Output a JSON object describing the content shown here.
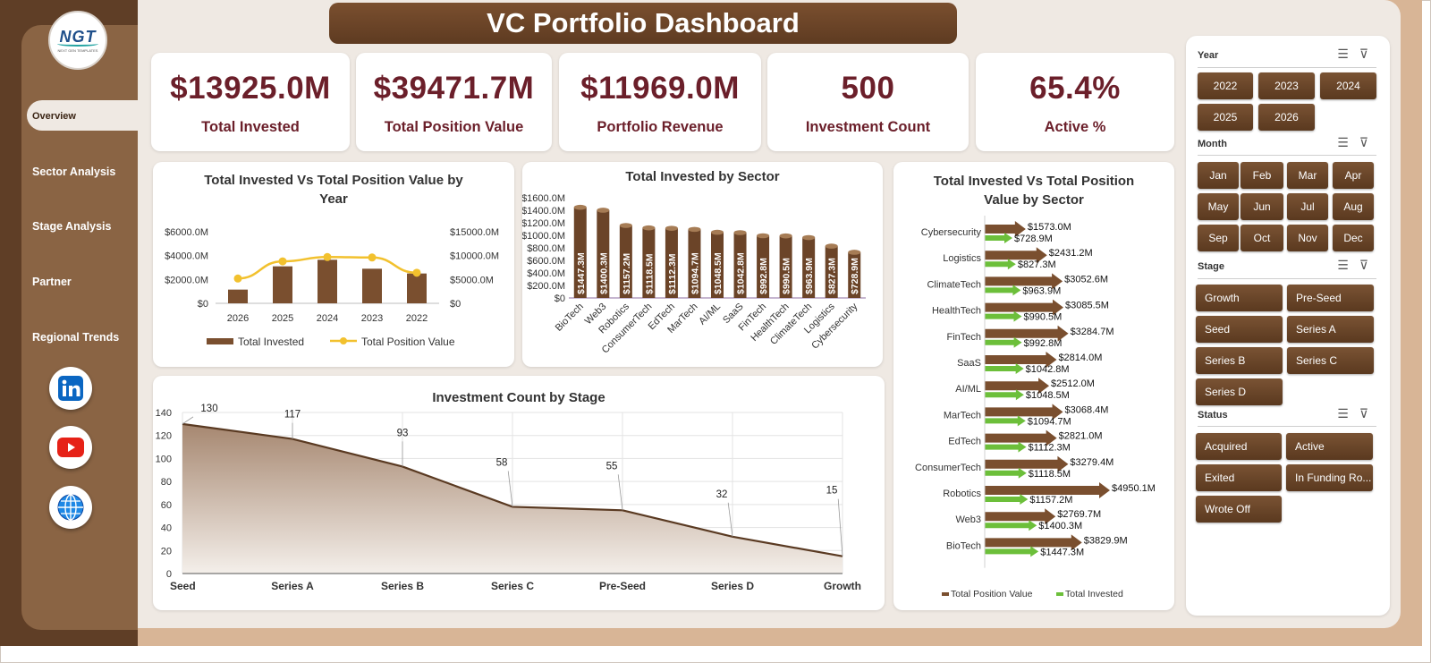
{
  "app": {
    "title": "VC Portfolio Dashboard",
    "logo_text": "NGT",
    "logo_tagline": "NEXT GEN TEMPLATES"
  },
  "nav": {
    "items": [
      {
        "label": "Overview"
      },
      {
        "label": "Sector Analysis"
      },
      {
        "label": "Stage Analysis"
      },
      {
        "label": "Partner"
      },
      {
        "label": "Regional Trends"
      }
    ],
    "social": [
      "linkedin-icon",
      "youtube-icon",
      "globe-icon"
    ]
  },
  "kpis": [
    {
      "value": "$13925.0M",
      "label": "Total Invested"
    },
    {
      "value": "$39471.7M",
      "label": "Total Position Value"
    },
    {
      "value": "$11969.0M",
      "label": "Portfolio Revenue"
    },
    {
      "value": "500",
      "label": "Investment Count"
    },
    {
      "value": "65.4%",
      "label": "Active %"
    }
  ],
  "charts": {
    "year": {
      "title": "Total Invested Vs Total Position Value by Year"
    },
    "sector": {
      "title": "Total Invested by Sector"
    },
    "sector_pos": {
      "title": "Total Invested Vs Total Position Value by Sector"
    },
    "stage": {
      "title": "Investment Count by Stage"
    }
  },
  "slicers": {
    "year": {
      "title": "Year",
      "options": [
        "2022",
        "2023",
        "2024",
        "2025",
        "2026"
      ]
    },
    "month": {
      "title": "Month",
      "options": [
        "Jan",
        "Feb",
        "Mar",
        "Apr",
        "May",
        "Jun",
        "Jul",
        "Aug",
        "Sep",
        "Oct",
        "Nov",
        "Dec"
      ]
    },
    "stage": {
      "title": "Stage",
      "options": [
        "Growth",
        "Pre-Seed",
        "Seed",
        "Series A",
        "Series B",
        "Series C",
        "Series D"
      ]
    },
    "status": {
      "title": "Status",
      "options": [
        "Acquired",
        "Active",
        "Exited",
        "In Funding Ro...",
        "Wrote Off"
      ]
    }
  },
  "colors": {
    "brown_dark": "#5f3e26",
    "brown_bar": "#7a4f2f",
    "yellow_line": "#f2c12e",
    "green_bar": "#6cbf3a",
    "kpi_text": "#6b1f2a"
  },
  "chart_data": [
    {
      "type": "bar",
      "title": "Total Invested Vs Total Position Value by Year",
      "categories": [
        "2026",
        "2025",
        "2024",
        "2023",
        "2022"
      ],
      "series": [
        {
          "name": "Total Invested",
          "type": "bar",
          "axis": "left",
          "values": [
            1150,
            3100,
            3650,
            2900,
            2500
          ]
        },
        {
          "name": "Total Position Value",
          "type": "line",
          "axis": "right",
          "values": [
            5200,
            8800,
            9700,
            9600,
            6400
          ]
        }
      ],
      "y_left": {
        "ticks": [
          "$0",
          "$2000.0M",
          "$4000.0M",
          "$6000.0M"
        ],
        "ylim": [
          0,
          6000
        ]
      },
      "y_right": {
        "ticks": [
          "$0",
          "$5000.0M",
          "$10000.0M",
          "$15000.0M"
        ],
        "ylim": [
          0,
          15000
        ]
      },
      "legend": "bottom"
    },
    {
      "type": "bar",
      "title": "Total Invested by Sector",
      "categories": [
        "BioTech",
        "Web3",
        "Robotics",
        "ConsumerTech",
        "EdTech",
        "MarTech",
        "AI/ML",
        "SaaS",
        "FinTech",
        "HealthTech",
        "ClimateTech",
        "Logistics",
        "Cybersecurity"
      ],
      "values": [
        1447.3,
        1400.3,
        1157.2,
        1118.5,
        1112.3,
        1094.7,
        1048.5,
        1042.8,
        992.8,
        990.5,
        963.9,
        827.3,
        728.9
      ],
      "labels": [
        "$1447.3M",
        "$1400.3M",
        "$1157.2M",
        "$1118.5M",
        "$1112.3M",
        "$1094.7M",
        "$1048.5M",
        "$1042.8M",
        "$992.8M",
        "$990.5M",
        "$963.9M",
        "$827.3M",
        "$728.9M"
      ],
      "y_ticks": [
        "$0",
        "$200.0M",
        "$400.0M",
        "$600.0M",
        "$800.0M",
        "$1000.0M",
        "$1200.0M",
        "$1400.0M",
        "$1600.0M"
      ],
      "ylim": [
        0,
        1600
      ]
    },
    {
      "type": "bar",
      "orientation": "horizontal",
      "title": "Total Invested Vs Total Position Value by Sector",
      "categories": [
        "Cybersecurity",
        "Logistics",
        "ClimateTech",
        "HealthTech",
        "FinTech",
        "SaaS",
        "AI/ML",
        "MarTech",
        "EdTech",
        "ConsumerTech",
        "Robotics",
        "Web3",
        "BioTech"
      ],
      "series": [
        {
          "name": "Total Position Value",
          "values": [
            1573.0,
            2431.2,
            3052.6,
            3085.5,
            3284.7,
            2814.0,
            2512.0,
            3068.4,
            2821.0,
            3279.4,
            4950.1,
            2769.7,
            3829.9
          ],
          "labels": [
            "$1573.0M",
            "$2431.2M",
            "$3052.6M",
            "$3085.5M",
            "$3284.7M",
            "$2814.0M",
            "$2512.0M",
            "$3068.4M",
            "$2821.0M",
            "$3279.4M",
            "$4950.1M",
            "$2769.7M",
            "$3829.9M"
          ]
        },
        {
          "name": "Total Invested",
          "values": [
            728.9,
            827.3,
            963.9,
            990.5,
            992.8,
            1042.8,
            1048.5,
            1094.7,
            1112.3,
            1118.5,
            1157.2,
            1400.3,
            1447.3
          ],
          "labels": [
            "$728.9M",
            "$827.3M",
            "$963.9M",
            "$990.5M",
            "$992.8M",
            "$1042.8M",
            "$1048.5M",
            "$1094.7M",
            "$1112.3M",
            "$1118.5M",
            "$1157.2M",
            "$1400.3M",
            "$1447.3M"
          ]
        }
      ],
      "legend": "bottom"
    },
    {
      "type": "area",
      "title": "Investment Count by Stage",
      "categories": [
        "Seed",
        "Series A",
        "Series B",
        "Series C",
        "Pre-Seed",
        "Series D",
        "Growth"
      ],
      "values": [
        130,
        117,
        93,
        58,
        55,
        32,
        15
      ],
      "labels": [
        "130",
        "117",
        "93",
        "58",
        "55",
        "32",
        "15"
      ],
      "y_ticks": [
        "0",
        "20",
        "40",
        "60",
        "80",
        "100",
        "120",
        "140"
      ],
      "ylim": [
        0,
        140
      ],
      "grid": true
    }
  ]
}
